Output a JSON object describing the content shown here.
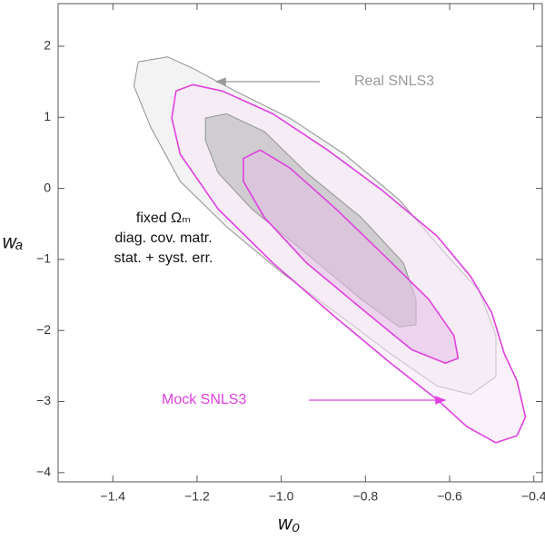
{
  "chart_data": {
    "type": "contour",
    "x_label": "w₀",
    "y_label": "wₐ",
    "xlim": [
      -1.53,
      -0.38
    ],
    "ylim": [
      -4.13,
      2.6
    ],
    "xticks": [
      {
        "value": -1.4,
        "label": "−1.4"
      },
      {
        "value": -1.2,
        "label": "−1.2"
      },
      {
        "value": -1.0,
        "label": "−1.0"
      },
      {
        "value": -0.8,
        "label": "−0.8"
      },
      {
        "value": -0.6,
        "label": "−0.6"
      },
      {
        "value": -0.4,
        "label": "−0.4"
      }
    ],
    "yticks": [
      2,
      1,
      0,
      {
        "value": -1,
        "label": "−1"
      },
      {
        "value": -2,
        "label": "−2"
      },
      {
        "value": -3,
        "label": "−3"
      },
      {
        "value": -4,
        "label": "−4"
      }
    ],
    "annotations": [
      "fixed Ωₘ",
      "diag. cov. matr.",
      "stat. + syst. err."
    ],
    "series": [
      {
        "name": "Real SNLS3",
        "color": "#999999",
        "contours": [
          {
            "x": [
              -1.34,
              -1.27,
              -1.21,
              -1.11,
              -0.98,
              -0.85,
              -0.72,
              -0.61,
              -0.53,
              -0.49,
              -0.49,
              -0.55,
              -0.63,
              -0.74,
              -0.87,
              -1.0,
              -1.13,
              -1.24,
              -1.31,
              -1.35
            ],
            "y": [
              1.78,
              1.85,
              1.69,
              1.37,
              0.99,
              0.48,
              -0.16,
              -0.92,
              -1.44,
              -2.07,
              -2.65,
              -2.9,
              -2.78,
              -2.33,
              -1.75,
              -1.18,
              -0.54,
              0.1,
              0.86,
              1.44
            ]
          },
          {
            "x": [
              -1.18,
              -1.13,
              -1.04,
              -0.94,
              -0.81,
              -0.71,
              -0.68,
              -0.68,
              -0.72,
              -0.81,
              -0.94,
              -1.07,
              -1.15,
              -1.18
            ],
            "y": [
              0.99,
              1.05,
              0.8,
              0.22,
              -0.41,
              -1.05,
              -1.56,
              -1.92,
              -1.95,
              -1.56,
              -0.92,
              -0.29,
              0.22,
              0.67
            ]
          }
        ]
      },
      {
        "name": "Mock SNLS3",
        "color": "#e040e0",
        "contours": [
          {
            "x": [
              -1.25,
              -1.21,
              -1.14,
              -1.02,
              -0.89,
              -0.76,
              -0.63,
              -0.55,
              -0.5,
              -0.47,
              -0.44,
              -0.42,
              -0.44,
              -0.49,
              -0.56,
              -0.63,
              -0.74,
              -0.87,
              -1.02,
              -1.15,
              -1.24,
              -1.26
            ],
            "y": [
              1.37,
              1.46,
              1.37,
              1.05,
              0.54,
              -0.03,
              -0.67,
              -1.24,
              -1.75,
              -2.33,
              -2.71,
              -3.22,
              -3.48,
              -3.58,
              -3.35,
              -2.97,
              -2.46,
              -1.82,
              -1.05,
              -0.29,
              0.48,
              0.99
            ]
          },
          {
            "x": [
              -1.09,
              -1.05,
              -0.98,
              -0.87,
              -0.76,
              -0.65,
              -0.59,
              -0.58,
              -0.61,
              -0.69,
              -0.81,
              -0.94,
              -1.04,
              -1.09
            ],
            "y": [
              0.42,
              0.54,
              0.29,
              -0.29,
              -0.92,
              -1.56,
              -2.07,
              -2.39,
              -2.46,
              -2.27,
              -1.69,
              -1.05,
              -0.41,
              0.1
            ]
          }
        ]
      }
    ]
  }
}
